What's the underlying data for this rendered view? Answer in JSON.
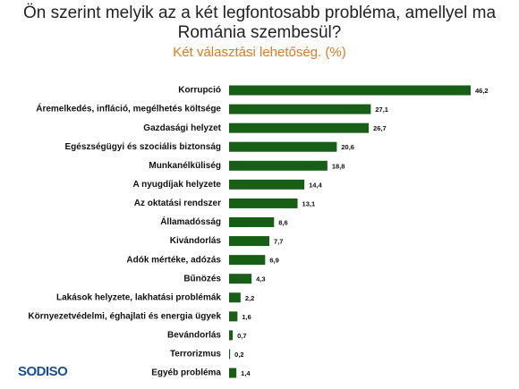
{
  "chart_data": {
    "type": "bar",
    "orientation": "horizontal",
    "title": "Ön szerint melyik az a két legfontosabb probléma, amellyel ma Románia szembesül?",
    "subtitle": "Két választási lehetőség. (%)",
    "categories": [
      "Korrupció",
      "Áremelkedés, infláció, megélhetés költsége",
      "Gazdasági helyzet",
      "Egészségügyi és szociális biztonság",
      "Munkanélküliség",
      "A nyugdíjak helyzete",
      "Az oktatási rendszer",
      "Államadósság",
      "Kivándorlás",
      "Adók mértéke, adózás",
      "Bűnözés",
      "Lakások helyzete, lakhatási problémák",
      "Környezetvédelmi, éghajlati és energia ügyek",
      "Bevándorlás",
      "Terrorizmus",
      "Egyéb probléma"
    ],
    "values": [
      46.2,
      27.1,
      26.7,
      20.6,
      18.8,
      14.4,
      13.1,
      8.6,
      7.7,
      6.9,
      4.3,
      2.2,
      1.6,
      0.7,
      0.2,
      1.4
    ],
    "value_labels": [
      "46,2",
      "27,1",
      "26,7",
      "20,6",
      "18,8",
      "14,4",
      "13,1",
      "8,6",
      "7,7",
      "6,9",
      "4,3",
      "2,2",
      "1,6",
      "0,7",
      "0,2",
      "1,4"
    ],
    "color": "#175e17",
    "logo": "SODISO"
  }
}
